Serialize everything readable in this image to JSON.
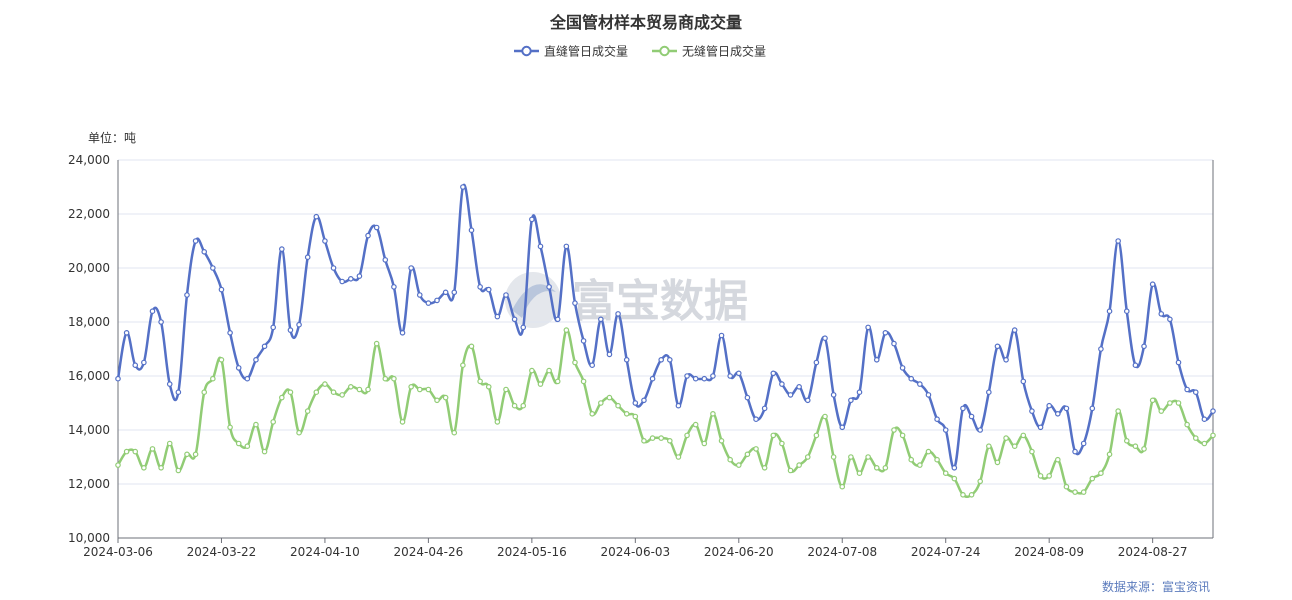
{
  "chart_data": {
    "type": "line",
    "title": "全国管材样本贸易商成交量",
    "unit_label": "单位：吨",
    "source_label": "数据来源：富宝资讯",
    "watermark": "富宝数据",
    "ylim": [
      10000,
      24000
    ],
    "y_ticks": [
      "24,000",
      "22,000",
      "20,000",
      "18,000",
      "16,000",
      "14,000",
      "12,000",
      "10,000"
    ],
    "y_tick_values": [
      24000,
      22000,
      20000,
      18000,
      16000,
      14000,
      12000,
      10000
    ],
    "x_ticks": [
      {
        "index": 0,
        "label": "2024-03-06"
      },
      {
        "index": 12,
        "label": "2024-03-22"
      },
      {
        "index": 24,
        "label": "2024-04-10"
      },
      {
        "index": 36,
        "label": "2024-04-26"
      },
      {
        "index": 48,
        "label": "2024-05-16"
      },
      {
        "index": 60,
        "label": "2024-06-03"
      },
      {
        "index": 72,
        "label": "2024-06-20"
      },
      {
        "index": 84,
        "label": "2024-07-08"
      },
      {
        "index": 96,
        "label": "2024-07-24"
      },
      {
        "index": 108,
        "label": "2024-08-09"
      },
      {
        "index": 120,
        "label": "2024-08-27"
      }
    ],
    "grid": true,
    "legend_position": "top-center",
    "series": [
      {
        "name": "直缝管日成交量",
        "color": "#5470c6",
        "values": [
          15900,
          17600,
          16400,
          16500,
          18400,
          18000,
          15700,
          15400,
          19000,
          21000,
          20600,
          20000,
          19200,
          17600,
          16300,
          15900,
          16600,
          17100,
          17800,
          20700,
          17700,
          17900,
          20400,
          21900,
          21000,
          20000,
          19500,
          19600,
          19700,
          21200,
          21500,
          20300,
          19300,
          17600,
          20000,
          19000,
          18700,
          18800,
          19100,
          19100,
          23000,
          21400,
          19300,
          19200,
          18200,
          19000,
          18100,
          17800,
          21800,
          20800,
          19300,
          18100,
          20800,
          18700,
          17300,
          16400,
          18100,
          16800,
          18300,
          16600,
          15000,
          15100,
          15900,
          16600,
          16600,
          14900,
          16000,
          15900,
          15900,
          16000,
          17500,
          16000,
          16100,
          15200,
          14400,
          14800,
          16100,
          15700,
          15300,
          15600,
          15100,
          16500,
          17400,
          15300,
          14100,
          15100,
          15400,
          17800,
          16600,
          17600,
          17200,
          16300,
          15900,
          15700,
          15300,
          14400,
          14000,
          12600,
          14800,
          14500,
          14000,
          15400,
          17100,
          16600,
          17700,
          15800,
          14700,
          14100,
          14900,
          14600,
          14800,
          13200,
          13500,
          14800,
          17000,
          18400,
          21000,
          18400,
          16400,
          17100,
          19400,
          18300,
          18100,
          16500,
          15500,
          15400,
          14400,
          14700
        ]
      },
      {
        "name": "无缝管日成交量",
        "color": "#91cc75",
        "values": [
          12700,
          13200,
          13200,
          12600,
          13300,
          12600,
          13500,
          12500,
          13100,
          13100,
          15400,
          15900,
          16600,
          14100,
          13500,
          13400,
          14200,
          13200,
          14300,
          15200,
          15400,
          13900,
          14700,
          15400,
          15700,
          15400,
          15300,
          15600,
          15500,
          15500,
          17200,
          15900,
          15900,
          14300,
          15600,
          15500,
          15500,
          15100,
          15200,
          13900,
          16400,
          17100,
          15800,
          15600,
          14300,
          15500,
          14900,
          14900,
          16200,
          15700,
          16200,
          15800,
          17700,
          16500,
          15800,
          14600,
          15000,
          15200,
          14900,
          14600,
          14500,
          13600,
          13700,
          13700,
          13600,
          13000,
          13800,
          14200,
          13500,
          14600,
          13600,
          12900,
          12700,
          13100,
          13300,
          12600,
          13800,
          13500,
          12500,
          12700,
          13000,
          13800,
          14500,
          13000,
          11900,
          13000,
          12400,
          13000,
          12600,
          12600,
          14000,
          13800,
          12900,
          12700,
          13200,
          12900,
          12400,
          12200,
          11600,
          11600,
          12100,
          13400,
          12800,
          13700,
          13400,
          13800,
          13200,
          12300,
          12300,
          12900,
          11900,
          11700,
          11700,
          12200,
          12400,
          13100,
          14700,
          13600,
          13400,
          13300,
          15100,
          14700,
          15000,
          15000,
          14200,
          13700,
          13500,
          13800
        ]
      }
    ]
  }
}
